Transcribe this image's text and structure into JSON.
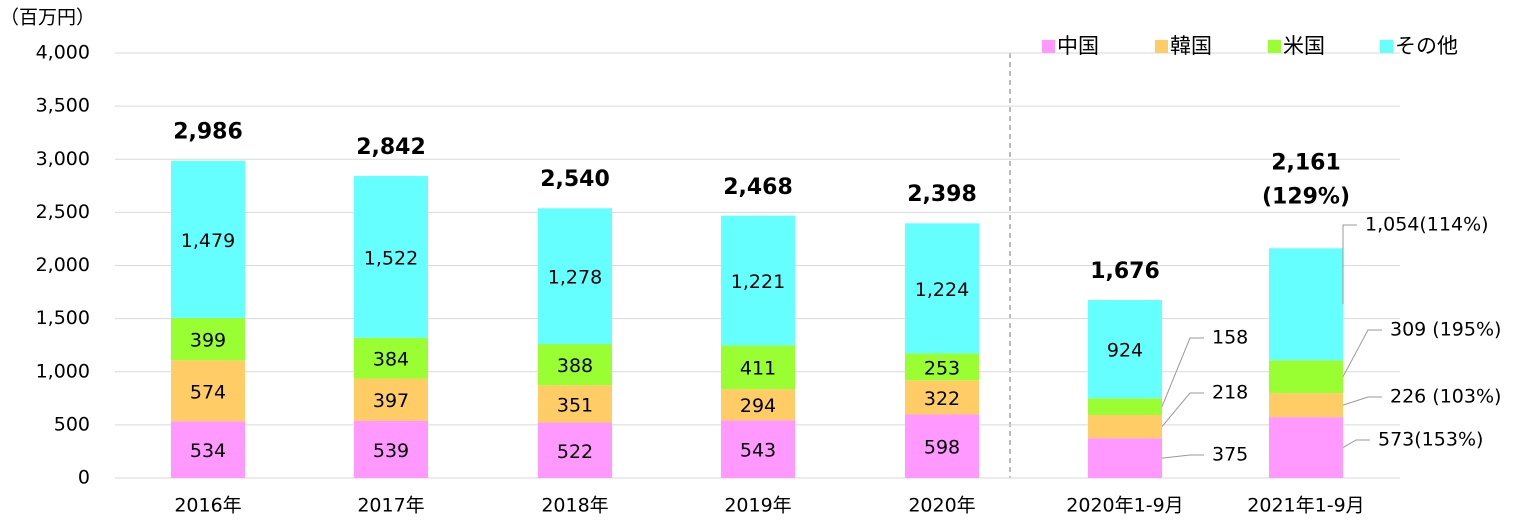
{
  "chart_data": {
    "type": "stacked-bar",
    "unit_label": "（百万円）",
    "categories": [
      "2016年",
      "2017年",
      "2018年",
      "2019年",
      "2020年",
      "2020年1-9月",
      "2021年1-9月"
    ],
    "series": [
      {
        "name": "中国",
        "color": "#ff99ff",
        "values": [
          534,
          539,
          522,
          543,
          598,
          375,
          573
        ],
        "value_labels": [
          "534",
          "539",
          "522",
          "543",
          "598",
          "375",
          "573(153%)"
        ]
      },
      {
        "name": "韓国",
        "color": "#ffcc66",
        "values": [
          574,
          397,
          351,
          294,
          322,
          218,
          226
        ],
        "value_labels": [
          "574",
          "397",
          "351",
          "294",
          "322",
          "218",
          "226 (103%)"
        ]
      },
      {
        "name": "米国",
        "color": "#99ff33",
        "values": [
          399,
          384,
          388,
          411,
          253,
          158,
          309
        ],
        "value_labels": [
          "399",
          "384",
          "388",
          "411",
          "253",
          "158",
          "309 (195%)"
        ]
      },
      {
        "name": "その他",
        "color": "#66ffff",
        "values": [
          1479,
          1522,
          1278,
          1221,
          1224,
          924,
          1054
        ],
        "value_labels": [
          "1,479",
          "1,522",
          "1,278",
          "1,221",
          "1,224",
          "924",
          "1,054(114%)"
        ]
      }
    ],
    "totals": [
      2986,
      2842,
      2540,
      2468,
      2398,
      1676,
      2161
    ],
    "totals_labels": [
      "2,986",
      "2,842",
      "2,540",
      "2,468",
      "2,398",
      "1,676",
      "2,161"
    ],
    "total_growth_label": "(129%)",
    "ylim": [
      0,
      4000
    ],
    "yticks": [
      0,
      500,
      {
        "value": 1000,
        "label": "1,000"
      },
      {
        "value": 1500,
        "label": "1,500"
      },
      {
        "value": 2000,
        "label": "2,000"
      },
      {
        "value": 2500,
        "label": "2,500"
      },
      {
        "value": 3000,
        "label": "3,000"
      },
      {
        "value": 3500,
        "label": "3,500"
      },
      {
        "value": 4000,
        "label": "4,000"
      }
    ],
    "grid": true,
    "legend": "top-right"
  }
}
